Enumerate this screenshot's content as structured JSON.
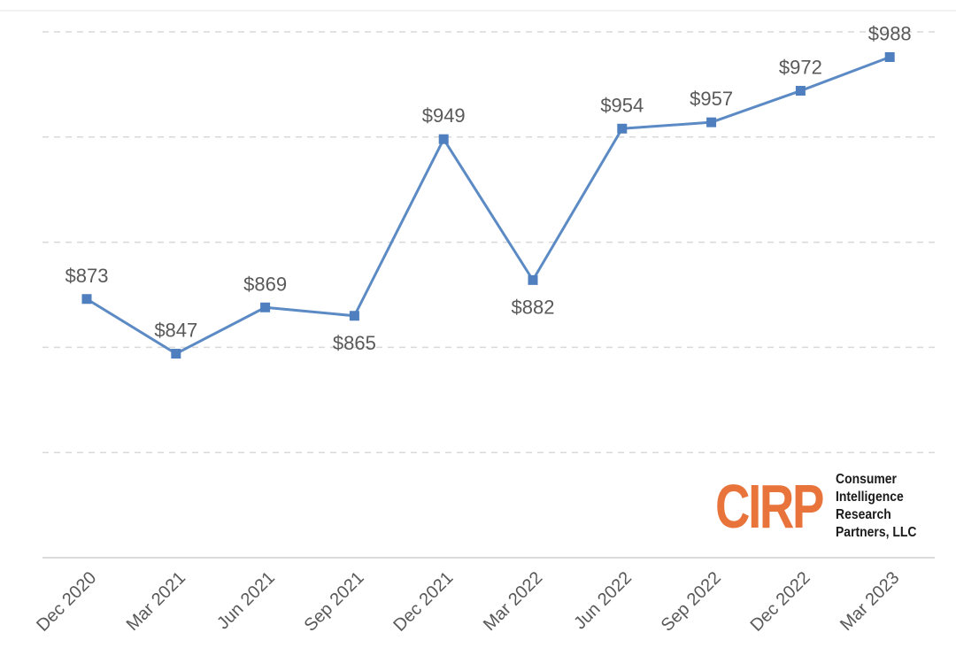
{
  "chart_data": {
    "type": "line",
    "title": "",
    "xlabel": "",
    "ylabel": "",
    "categories": [
      "Dec 2020",
      "Mar 2021",
      "Jun 2021",
      "Sep 2021",
      "Dec 2021",
      "Mar 2022",
      "Jun 2022",
      "Sep 2022",
      "Dec 2022",
      "Mar 2023"
    ],
    "values": [
      873,
      847,
      869,
      865,
      949,
      882,
      954,
      957,
      972,
      988
    ],
    "data_labels": [
      "$873",
      "$847",
      "$869",
      "$865",
      "$949",
      "$882",
      "$954",
      "$957",
      "$972",
      "$988"
    ],
    "label_positions": [
      "above",
      "above",
      "above",
      "below",
      "above",
      "below",
      "above",
      "above",
      "above",
      "above"
    ],
    "ylim": [
      750,
      1000
    ],
    "y_gridlines": [
      800,
      850,
      900,
      950,
      1000
    ],
    "y_tick_labels_shown": false,
    "grid": true,
    "legend": "none",
    "marker": "square",
    "line_color": "#5b8ac4",
    "marker_color": "#4f7fbf"
  },
  "branding": {
    "logo_mark": "CIRP",
    "logo_lines": [
      "Consumer",
      "Intelligence",
      "Research",
      "Partners, LLC"
    ],
    "logo_color": "#e8743b"
  }
}
